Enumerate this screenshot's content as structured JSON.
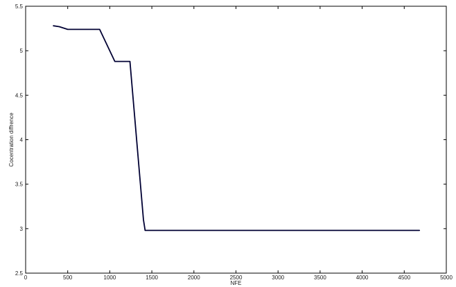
{
  "chart_data": {
    "type": "line",
    "xlabel": "NFE",
    "ylabel": "Cocentration diffrence",
    "xlim": [
      0,
      5000
    ],
    "ylim": [
      2.5,
      5.5
    ],
    "xticks": [
      0,
      500,
      1000,
      1500,
      2000,
      2500,
      3000,
      3500,
      4000,
      4500,
      5000
    ],
    "yticks": [
      2.5,
      3,
      3.5,
      4,
      4.5,
      5,
      5.5
    ],
    "xtick_labels": [
      "0",
      "500",
      "1000",
      "1500",
      "2000",
      "2500",
      "3000",
      "3500",
      "4000",
      "4500",
      "5000"
    ],
    "ytick_labels": [
      "2.5",
      "3",
      "3.5",
      "4",
      "4.5",
      "5",
      "5.5"
    ],
    "grid": false,
    "line_color": "#000033",
    "series": [
      {
        "x": [
          330,
          400,
          500,
          600,
          700,
          800,
          880,
          1060,
          1240,
          1400,
          1420,
          2000,
          3000,
          4000,
          4680
        ],
        "y": [
          5.28,
          5.27,
          5.24,
          5.24,
          5.24,
          5.24,
          5.24,
          4.88,
          4.88,
          3.1,
          2.98,
          2.98,
          2.98,
          2.98,
          2.98
        ]
      }
    ]
  }
}
